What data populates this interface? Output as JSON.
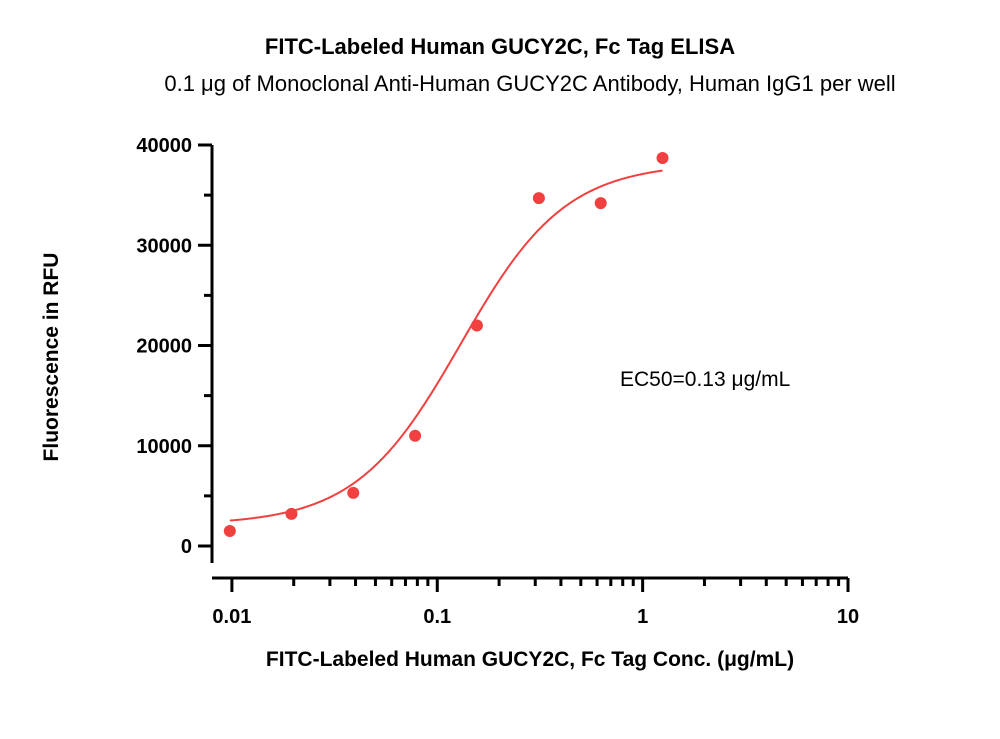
{
  "chart_data": {
    "type": "scatter",
    "title": "FITC-Labeled Human GUCY2C, Fc Tag ELISA",
    "subtitle": "0.1 μg of Monoclonal Anti-Human GUCY2C Antibody, Human IgG1 per well",
    "xlabel": "FITC-Labeled Human GUCY2C, Fc Tag Conc. (μg/mL)",
    "ylabel": "Fluorescence in RFU",
    "x_scale": "log",
    "xlim": [
      0.008,
      10
    ],
    "ylim": [
      -1500,
      40000
    ],
    "x_ticks": [
      0.01,
      0.1,
      1,
      10
    ],
    "x_tick_labels": [
      "0.01",
      "0.1",
      "1",
      "10"
    ],
    "y_ticks": [
      0,
      10000,
      20000,
      30000,
      40000
    ],
    "y_tick_labels": [
      "0",
      "10000",
      "20000",
      "30000",
      "40000"
    ],
    "grid": false,
    "legend": "none",
    "series": [
      {
        "x": [
          0.00977,
          0.0195,
          0.039,
          0.078,
          0.156,
          0.3125,
          0.625,
          1.25
        ],
        "y": [
          1500,
          3200,
          5300,
          11000,
          22000,
          34700,
          34200,
          38700
        ],
        "color": "#f04040",
        "fit": {
          "model": "4PL",
          "bottom": 2100,
          "top": 38200,
          "ec50": 0.13,
          "hill": 1.7,
          "range": [
            0.00977,
            1.25
          ]
        }
      }
    ],
    "annotations": [
      {
        "text": "EC50=0.13 μg/mL"
      }
    ]
  }
}
